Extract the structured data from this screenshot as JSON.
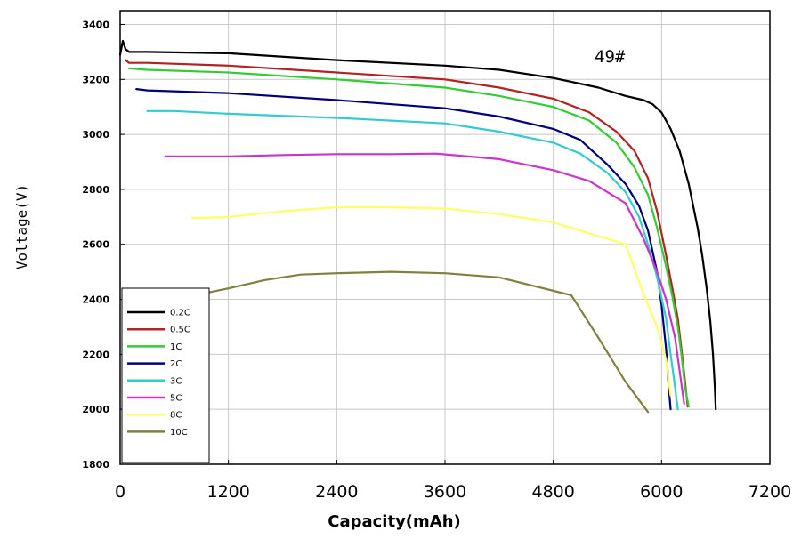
{
  "chart_data": {
    "type": "line",
    "title": "",
    "xlabel": "Capacity(mAh)",
    "ylabel": "Voltage(V)",
    "xlim": [
      0,
      7200
    ],
    "ylim": [
      1800,
      3450
    ],
    "xticks": [
      0,
      1200,
      2400,
      3600,
      4800,
      6000,
      7200
    ],
    "yticks": [
      1800,
      2000,
      2200,
      2400,
      2600,
      2800,
      3000,
      3200,
      3400
    ],
    "x_tick_labels": [
      "0",
      "1200",
      "2400",
      "3600",
      "4800",
      "6000",
      "7200"
    ],
    "y_tick_labels": [
      "1800",
      "2000",
      "2200",
      "2400",
      "2600",
      "2800",
      "3000",
      "3200",
      "3400"
    ],
    "grid": true,
    "legend_position": "bottom-left",
    "annotation": "49#",
    "series": [
      {
        "name": "0.2C",
        "color": "#000000",
        "x": [
          0,
          30,
          60,
          100,
          300,
          1200,
          2400,
          3600,
          4200,
          4800,
          5300,
          5600,
          5800,
          5900,
          6000,
          6100,
          6200,
          6300,
          6400,
          6450,
          6500,
          6540,
          6570,
          6590,
          6600
        ],
        "y": [
          3290,
          3340,
          3310,
          3300,
          3300,
          3295,
          3270,
          3250,
          3235,
          3205,
          3170,
          3140,
          3125,
          3110,
          3080,
          3020,
          2940,
          2820,
          2660,
          2560,
          2440,
          2320,
          2200,
          2080,
          2000
        ]
      },
      {
        "name": "0.5C",
        "color": "#b22222",
        "x": [
          60,
          100,
          300,
          1200,
          2400,
          3600,
          4200,
          4800,
          5200,
          5500,
          5700,
          5850,
          5950,
          6050,
          6120,
          6180,
          6220,
          6260,
          6290
        ],
        "y": [
          3270,
          3260,
          3260,
          3250,
          3225,
          3200,
          3170,
          3130,
          3080,
          3010,
          2940,
          2840,
          2720,
          2560,
          2440,
          2330,
          2220,
          2100,
          2010
        ]
      },
      {
        "name": "1C",
        "color": "#33cc33",
        "x": [
          100,
          300,
          1200,
          2400,
          3600,
          4200,
          4800,
          5200,
          5500,
          5700,
          5850,
          5950,
          6050,
          6120,
          6180,
          6220,
          6260,
          6300
        ],
        "y": [
          3240,
          3235,
          3225,
          3200,
          3170,
          3140,
          3100,
          3050,
          2970,
          2880,
          2780,
          2660,
          2520,
          2410,
          2300,
          2200,
          2080,
          2010
        ]
      },
      {
        "name": "2C",
        "color": "#00007a",
        "x": [
          180,
          300,
          1200,
          2400,
          3600,
          4200,
          4800,
          5100,
          5400,
          5600,
          5750,
          5850,
          5950,
          6000,
          6050,
          6080,
          6100
        ],
        "y": [
          3165,
          3160,
          3150,
          3125,
          3095,
          3065,
          3020,
          2980,
          2890,
          2820,
          2740,
          2650,
          2500,
          2380,
          2220,
          2080,
          2000
        ]
      },
      {
        "name": "3C",
        "color": "#33cccc",
        "x": [
          300,
          600,
          1200,
          2400,
          3600,
          4200,
          4800,
          5100,
          5400,
          5600,
          5750,
          5850,
          5950,
          6050,
          6100,
          6150,
          6180
        ],
        "y": [
          3085,
          3085,
          3075,
          3060,
          3040,
          3010,
          2970,
          2930,
          2860,
          2790,
          2700,
          2600,
          2480,
          2330,
          2200,
          2080,
          2000
        ]
      },
      {
        "name": "5C",
        "color": "#cc33cc",
        "x": [
          500,
          1200,
          1800,
          2400,
          3000,
          3500,
          4200,
          4800,
          5200,
          5600,
          5800,
          5950,
          6050,
          6150,
          6200,
          6250
        ],
        "y": [
          2920,
          2920,
          2925,
          2928,
          2928,
          2930,
          2910,
          2870,
          2830,
          2750,
          2620,
          2500,
          2400,
          2260,
          2140,
          2020
        ]
      },
      {
        "name": "8C",
        "color": "#ffff66",
        "x": [
          800,
          1200,
          1800,
          2400,
          3000,
          3600,
          4200,
          4800,
          5200,
          5600,
          5800,
          5950,
          6050,
          6100
        ],
        "y": [
          2695,
          2700,
          2720,
          2735,
          2735,
          2730,
          2710,
          2680,
          2640,
          2600,
          2420,
          2300,
          2180,
          2050
        ]
      },
      {
        "name": "10C",
        "color": "#808040",
        "x": [
          900,
          1200,
          1600,
          2000,
          2400,
          3000,
          3600,
          4200,
          5000,
          5300,
          5600,
          5850
        ],
        "y": [
          2420,
          2440,
          2470,
          2490,
          2495,
          2500,
          2495,
          2480,
          2415,
          2260,
          2100,
          1990
        ]
      }
    ]
  }
}
